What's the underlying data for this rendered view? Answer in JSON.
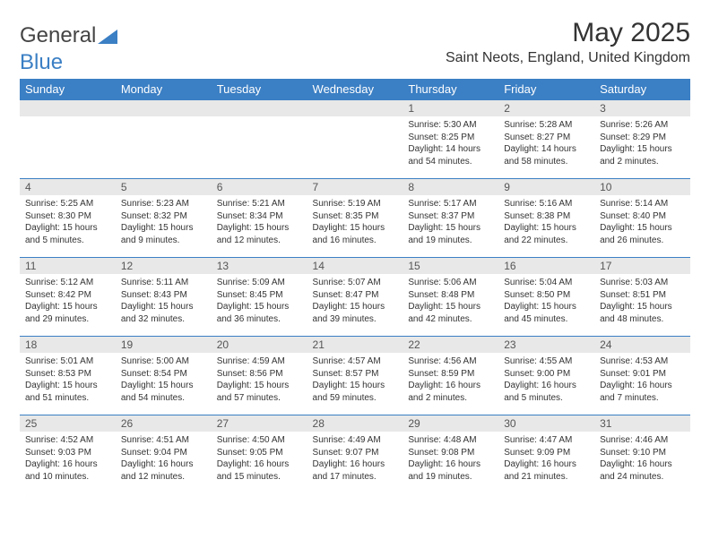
{
  "logo": {
    "text1": "General",
    "text2": "Blue"
  },
  "title": "May 2025",
  "location": "Saint Neots, England, United Kingdom",
  "colors": {
    "header_bg": "#3b7fc4",
    "daynum_bg": "#e8e8e8",
    "row_border": "#3b7fc4"
  },
  "dayNames": [
    "Sunday",
    "Monday",
    "Tuesday",
    "Wednesday",
    "Thursday",
    "Friday",
    "Saturday"
  ],
  "weeks": [
    [
      null,
      null,
      null,
      null,
      {
        "n": "1",
        "sr": "5:30 AM",
        "ss": "8:25 PM",
        "dl": "14 hours and 54 minutes."
      },
      {
        "n": "2",
        "sr": "5:28 AM",
        "ss": "8:27 PM",
        "dl": "14 hours and 58 minutes."
      },
      {
        "n": "3",
        "sr": "5:26 AM",
        "ss": "8:29 PM",
        "dl": "15 hours and 2 minutes."
      }
    ],
    [
      {
        "n": "4",
        "sr": "5:25 AM",
        "ss": "8:30 PM",
        "dl": "15 hours and 5 minutes."
      },
      {
        "n": "5",
        "sr": "5:23 AM",
        "ss": "8:32 PM",
        "dl": "15 hours and 9 minutes."
      },
      {
        "n": "6",
        "sr": "5:21 AM",
        "ss": "8:34 PM",
        "dl": "15 hours and 12 minutes."
      },
      {
        "n": "7",
        "sr": "5:19 AM",
        "ss": "8:35 PM",
        "dl": "15 hours and 16 minutes."
      },
      {
        "n": "8",
        "sr": "5:17 AM",
        "ss": "8:37 PM",
        "dl": "15 hours and 19 minutes."
      },
      {
        "n": "9",
        "sr": "5:16 AM",
        "ss": "8:38 PM",
        "dl": "15 hours and 22 minutes."
      },
      {
        "n": "10",
        "sr": "5:14 AM",
        "ss": "8:40 PM",
        "dl": "15 hours and 26 minutes."
      }
    ],
    [
      {
        "n": "11",
        "sr": "5:12 AM",
        "ss": "8:42 PM",
        "dl": "15 hours and 29 minutes."
      },
      {
        "n": "12",
        "sr": "5:11 AM",
        "ss": "8:43 PM",
        "dl": "15 hours and 32 minutes."
      },
      {
        "n": "13",
        "sr": "5:09 AM",
        "ss": "8:45 PM",
        "dl": "15 hours and 36 minutes."
      },
      {
        "n": "14",
        "sr": "5:07 AM",
        "ss": "8:47 PM",
        "dl": "15 hours and 39 minutes."
      },
      {
        "n": "15",
        "sr": "5:06 AM",
        "ss": "8:48 PM",
        "dl": "15 hours and 42 minutes."
      },
      {
        "n": "16",
        "sr": "5:04 AM",
        "ss": "8:50 PM",
        "dl": "15 hours and 45 minutes."
      },
      {
        "n": "17",
        "sr": "5:03 AM",
        "ss": "8:51 PM",
        "dl": "15 hours and 48 minutes."
      }
    ],
    [
      {
        "n": "18",
        "sr": "5:01 AM",
        "ss": "8:53 PM",
        "dl": "15 hours and 51 minutes."
      },
      {
        "n": "19",
        "sr": "5:00 AM",
        "ss": "8:54 PM",
        "dl": "15 hours and 54 minutes."
      },
      {
        "n": "20",
        "sr": "4:59 AM",
        "ss": "8:56 PM",
        "dl": "15 hours and 57 minutes."
      },
      {
        "n": "21",
        "sr": "4:57 AM",
        "ss": "8:57 PM",
        "dl": "15 hours and 59 minutes."
      },
      {
        "n": "22",
        "sr": "4:56 AM",
        "ss": "8:59 PM",
        "dl": "16 hours and 2 minutes."
      },
      {
        "n": "23",
        "sr": "4:55 AM",
        "ss": "9:00 PM",
        "dl": "16 hours and 5 minutes."
      },
      {
        "n": "24",
        "sr": "4:53 AM",
        "ss": "9:01 PM",
        "dl": "16 hours and 7 minutes."
      }
    ],
    [
      {
        "n": "25",
        "sr": "4:52 AM",
        "ss": "9:03 PM",
        "dl": "16 hours and 10 minutes."
      },
      {
        "n": "26",
        "sr": "4:51 AM",
        "ss": "9:04 PM",
        "dl": "16 hours and 12 minutes."
      },
      {
        "n": "27",
        "sr": "4:50 AM",
        "ss": "9:05 PM",
        "dl": "16 hours and 15 minutes."
      },
      {
        "n": "28",
        "sr": "4:49 AM",
        "ss": "9:07 PM",
        "dl": "16 hours and 17 minutes."
      },
      {
        "n": "29",
        "sr": "4:48 AM",
        "ss": "9:08 PM",
        "dl": "16 hours and 19 minutes."
      },
      {
        "n": "30",
        "sr": "4:47 AM",
        "ss": "9:09 PM",
        "dl": "16 hours and 21 minutes."
      },
      {
        "n": "31",
        "sr": "4:46 AM",
        "ss": "9:10 PM",
        "dl": "16 hours and 24 minutes."
      }
    ]
  ],
  "labels": {
    "sunrise": "Sunrise:",
    "sunset": "Sunset:",
    "daylight": "Daylight:"
  }
}
